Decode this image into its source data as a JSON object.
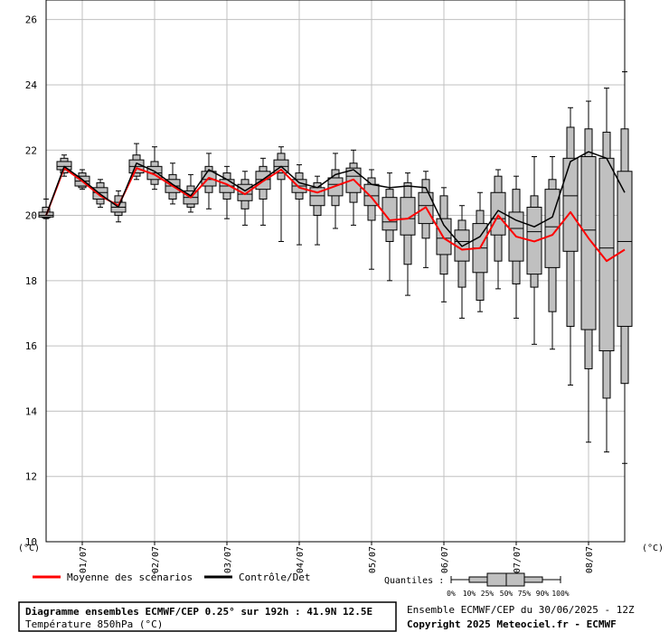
{
  "chart_data": {
    "type": "boxplot",
    "y_unit_left": "(°C)",
    "y_unit_right": "(°C)",
    "ylim": [
      10,
      26.6
    ],
    "yticks": [
      10,
      12,
      14,
      16,
      18,
      20,
      22,
      24,
      26
    ],
    "grid": true,
    "x_labels": [
      "01/07",
      "02/07",
      "03/07",
      "04/07",
      "05/07",
      "06/07",
      "07/07",
      "08/07"
    ],
    "legend": {
      "mean_label": "Moyenne des scénarios",
      "control_label": "Contrôle/Det",
      "quantiles_label": "Quantiles :",
      "quantile_ticks": [
        "0%",
        "10%",
        "25%",
        "50%",
        "75%",
        "90%",
        "100%"
      ]
    },
    "colors": {
      "mean": "#ff0000",
      "control": "#000000",
      "box": "#c0c0c0",
      "grid": "#c0c0c0"
    },
    "boxes": [
      {
        "step": 0,
        "min": 19.9,
        "p10": 19.92,
        "p25": 19.95,
        "p50": 20.0,
        "p75": 20.1,
        "p90": 20.25,
        "max": 20.5
      },
      {
        "step": 1,
        "min": 21.2,
        "p10": 21.3,
        "p25": 21.4,
        "p50": 21.5,
        "p75": 21.65,
        "p90": 21.75,
        "max": 21.85
      },
      {
        "step": 2,
        "min": 20.8,
        "p10": 20.85,
        "p25": 20.9,
        "p50": 21.05,
        "p75": 21.2,
        "p90": 21.3,
        "max": 21.4
      },
      {
        "step": 3,
        "min": 20.25,
        "p10": 20.35,
        "p25": 20.5,
        "p50": 20.7,
        "p75": 20.85,
        "p90": 21.0,
        "max": 21.1
      },
      {
        "step": 4,
        "min": 19.8,
        "p10": 20.0,
        "p25": 20.1,
        "p50": 20.25,
        "p75": 20.4,
        "p90": 20.6,
        "max": 20.75
      },
      {
        "step": 5,
        "min": 21.1,
        "p10": 21.2,
        "p25": 21.3,
        "p50": 21.5,
        "p75": 21.7,
        "p90": 21.85,
        "max": 22.2
      },
      {
        "step": 6,
        "min": 20.8,
        "p10": 20.95,
        "p25": 21.1,
        "p50": 21.3,
        "p75": 21.5,
        "p90": 21.65,
        "max": 22.1
      },
      {
        "step": 7,
        "min": 20.35,
        "p10": 20.5,
        "p25": 20.7,
        "p50": 20.9,
        "p75": 21.1,
        "p90": 21.25,
        "max": 21.6
      },
      {
        "step": 8,
        "min": 20.1,
        "p10": 20.25,
        "p25": 20.35,
        "p50": 20.55,
        "p75": 20.75,
        "p90": 20.9,
        "max": 21.25
      },
      {
        "step": 9,
        "min": 20.2,
        "p10": 20.7,
        "p25": 20.9,
        "p50": 21.1,
        "p75": 21.35,
        "p90": 21.5,
        "max": 21.9
      },
      {
        "step": 10,
        "min": 19.9,
        "p10": 20.5,
        "p25": 20.7,
        "p50": 20.9,
        "p75": 21.1,
        "p90": 21.3,
        "max": 21.5
      },
      {
        "step": 11,
        "min": 19.7,
        "p10": 20.2,
        "p25": 20.45,
        "p50": 20.65,
        "p75": 20.95,
        "p90": 21.1,
        "max": 21.35
      },
      {
        "step": 12,
        "min": 19.7,
        "p10": 20.5,
        "p25": 20.8,
        "p50": 21.1,
        "p75": 21.35,
        "p90": 21.5,
        "max": 21.75
      },
      {
        "step": 13,
        "min": 19.2,
        "p10": 21.1,
        "p25": 21.3,
        "p50": 21.5,
        "p75": 21.7,
        "p90": 21.9,
        "max": 22.1
      },
      {
        "step": 14,
        "min": 19.1,
        "p10": 20.5,
        "p25": 20.7,
        "p50": 20.9,
        "p75": 21.1,
        "p90": 21.3,
        "max": 21.55
      },
      {
        "step": 15,
        "min": 19.1,
        "p10": 20.0,
        "p25": 20.3,
        "p50": 20.6,
        "p75": 20.85,
        "p90": 21.0,
        "max": 21.2
      },
      {
        "step": 16,
        "min": 19.6,
        "p10": 20.3,
        "p25": 20.6,
        "p50": 20.95,
        "p75": 21.15,
        "p90": 21.4,
        "max": 21.9
      },
      {
        "step": 17,
        "min": 19.7,
        "p10": 20.4,
        "p25": 20.7,
        "p50": 21.2,
        "p75": 21.45,
        "p90": 21.6,
        "max": 22.0
      },
      {
        "step": 18,
        "min": 18.35,
        "p10": 19.85,
        "p25": 20.3,
        "p50": 20.6,
        "p75": 20.95,
        "p90": 21.15,
        "max": 21.4
      },
      {
        "step": 19,
        "min": 18.0,
        "p10": 19.2,
        "p25": 19.55,
        "p50": 19.8,
        "p75": 20.55,
        "p90": 20.8,
        "max": 21.3
      },
      {
        "step": 20,
        "min": 17.55,
        "p10": 18.5,
        "p25": 19.4,
        "p50": 19.9,
        "p75": 20.55,
        "p90": 21.0,
        "max": 21.3
      },
      {
        "step": 21,
        "min": 18.4,
        "p10": 19.3,
        "p25": 19.75,
        "p50": 20.3,
        "p75": 20.7,
        "p90": 21.1,
        "max": 21.35
      },
      {
        "step": 22,
        "min": 17.35,
        "p10": 18.2,
        "p25": 18.8,
        "p50": 19.3,
        "p75": 19.9,
        "p90": 20.6,
        "max": 20.85
      },
      {
        "step": 23,
        "min": 16.85,
        "p10": 17.8,
        "p25": 18.6,
        "p50": 19.2,
        "p75": 19.55,
        "p90": 19.85,
        "max": 20.3
      },
      {
        "step": 24,
        "min": 17.05,
        "p10": 17.4,
        "p25": 18.25,
        "p50": 19.0,
        "p75": 19.75,
        "p90": 20.15,
        "max": 20.7
      },
      {
        "step": 25,
        "min": 17.75,
        "p10": 18.6,
        "p25": 19.4,
        "p50": 19.9,
        "p75": 20.7,
        "p90": 21.2,
        "max": 21.4
      },
      {
        "step": 26,
        "min": 16.85,
        "p10": 17.9,
        "p25": 18.6,
        "p50": 19.6,
        "p75": 20.1,
        "p90": 20.8,
        "max": 21.2
      },
      {
        "step": 27,
        "min": 16.05,
        "p10": 17.8,
        "p25": 18.2,
        "p50": 19.5,
        "p75": 20.25,
        "p90": 20.6,
        "max": 21.8
      },
      {
        "step": 28,
        "min": 15.9,
        "p10": 17.05,
        "p25": 18.4,
        "p50": 19.65,
        "p75": 20.8,
        "p90": 21.1,
        "max": 21.8
      },
      {
        "step": 29,
        "min": 14.8,
        "p10": 16.6,
        "p25": 18.9,
        "p50": 20.6,
        "p75": 21.75,
        "p90": 22.7,
        "max": 23.3
      },
      {
        "step": 30,
        "min": 13.05,
        "p10": 15.3,
        "p25": 16.5,
        "p50": 19.55,
        "p75": 21.8,
        "p90": 22.65,
        "max": 23.5
      },
      {
        "step": 31,
        "min": 12.75,
        "p10": 14.4,
        "p25": 15.85,
        "p50": 19.0,
        "p75": 21.75,
        "p90": 22.55,
        "max": 23.9
      },
      {
        "step": 32,
        "min": 12.4,
        "p10": 14.85,
        "p25": 16.6,
        "p50": 19.2,
        "p75": 21.35,
        "p90": 22.65,
        "max": 24.4
      }
    ],
    "series": [
      {
        "name": "Moyenne des scénarios",
        "values": [
          20.0,
          21.45,
          21.05,
          20.6,
          20.3,
          21.45,
          21.25,
          20.9,
          20.55,
          21.15,
          20.95,
          20.65,
          21.05,
          21.4,
          20.85,
          20.7,
          20.9,
          21.1,
          20.55,
          19.85,
          19.9,
          20.25,
          19.3,
          18.95,
          19.0,
          20.0,
          19.35,
          19.2,
          19.4,
          20.1,
          19.3,
          18.6,
          18.95
        ]
      },
      {
        "name": "Contrôle/Det",
        "values": [
          20.0,
          21.5,
          21.1,
          20.65,
          20.25,
          21.6,
          21.35,
          20.95,
          20.6,
          21.4,
          21.1,
          20.75,
          21.1,
          21.5,
          21.0,
          20.85,
          21.25,
          21.4,
          20.95,
          20.85,
          20.9,
          20.85,
          19.7,
          19.05,
          19.35,
          20.15,
          19.85,
          19.65,
          19.95,
          21.65,
          21.95,
          21.75,
          20.7
        ]
      }
    ]
  },
  "footer": {
    "title_line": "Diagramme ensembles ECMWF/CEP 0.25° sur 192h : 41.9N 12.5E",
    "subtitle_line": "Température 850hPa (°C)",
    "run_line": "Ensemble ECMWF/CEP du 30/06/2025 - 12Z",
    "copyright_line": "Copyright 2025 Meteociel.fr - ECMWF"
  }
}
